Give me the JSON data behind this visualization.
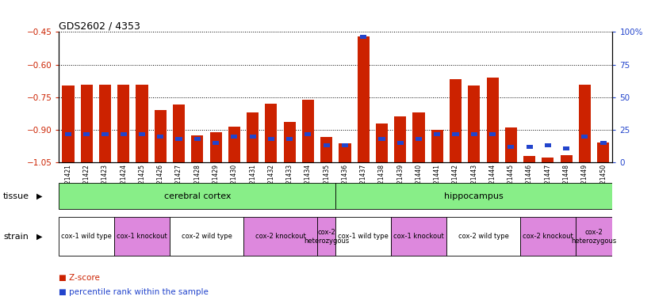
{
  "title": "GDS2602 / 4353",
  "samples": [
    "GSM121421",
    "GSM121422",
    "GSM121423",
    "GSM121424",
    "GSM121425",
    "GSM121426",
    "GSM121427",
    "GSM121428",
    "GSM121429",
    "GSM121430",
    "GSM121431",
    "GSM121432",
    "GSM121433",
    "GSM121434",
    "GSM121435",
    "GSM121436",
    "GSM121437",
    "GSM121438",
    "GSM121439",
    "GSM121440",
    "GSM121441",
    "GSM121442",
    "GSM121443",
    "GSM121444",
    "GSM121445",
    "GSM121446",
    "GSM121447",
    "GSM121448",
    "GSM121449",
    "GSM121450"
  ],
  "z_scores": [
    -0.695,
    -0.692,
    -0.694,
    -0.692,
    -0.693,
    -0.808,
    -0.782,
    -0.924,
    -0.912,
    -0.884,
    -0.82,
    -0.78,
    -0.863,
    -0.762,
    -0.932,
    -0.962,
    -0.472,
    -0.872,
    -0.838,
    -0.82,
    -0.9,
    -0.668,
    -0.696,
    -0.66,
    -0.888,
    -1.02,
    -1.025,
    -1.015,
    -0.692,
    -0.958
  ],
  "percentiles": [
    22,
    22,
    22,
    22,
    22,
    20,
    18,
    18,
    15,
    20,
    20,
    18,
    18,
    22,
    13,
    13,
    96,
    18,
    15,
    18,
    22,
    22,
    22,
    22,
    12,
    12,
    13,
    11,
    20,
    15
  ],
  "bar_color": "#cc2200",
  "blue_color": "#2244cc",
  "ylim_left": [
    -1.05,
    -0.45
  ],
  "ylim_right": [
    0,
    100
  ],
  "yticks_left": [
    -1.05,
    -0.9,
    -0.75,
    -0.6,
    -0.45
  ],
  "yticks_right": [
    0,
    25,
    50,
    75,
    100
  ],
  "bar_width": 0.65,
  "blue_bar_width": 0.35,
  "tissue_groups": [
    {
      "label": "cerebral cortex",
      "start": 0,
      "end": 15,
      "color": "#88ee88"
    },
    {
      "label": "hippocampus",
      "start": 15,
      "end": 30,
      "color": "#88ee88"
    }
  ],
  "strain_groups": [
    {
      "label": "cox-1 wild type",
      "start": 0,
      "end": 3,
      "color": "#ffffff"
    },
    {
      "label": "cox-1 knockout",
      "start": 3,
      "end": 6,
      "color": "#dd88dd"
    },
    {
      "label": "cox-2 wild type",
      "start": 6,
      "end": 10,
      "color": "#ffffff"
    },
    {
      "label": "cox-2 knockout",
      "start": 10,
      "end": 14,
      "color": "#dd88dd"
    },
    {
      "label": "cox-2\nheterozygous",
      "start": 14,
      "end": 15,
      "color": "#dd88dd"
    },
    {
      "label": "cox-1 wild type",
      "start": 15,
      "end": 18,
      "color": "#ffffff"
    },
    {
      "label": "cox-1 knockout",
      "start": 18,
      "end": 21,
      "color": "#dd88dd"
    },
    {
      "label": "cox-2 wild type",
      "start": 21,
      "end": 25,
      "color": "#ffffff"
    },
    {
      "label": "cox-2 knockout",
      "start": 25,
      "end": 28,
      "color": "#dd88dd"
    },
    {
      "label": "cox-2\nheterozygous",
      "start": 28,
      "end": 30,
      "color": "#dd88dd"
    }
  ],
  "legend_zscore_label": "Z-score",
  "legend_percentile_label": "percentile rank within the sample",
  "tissue_label": "tissue",
  "strain_label": "strain",
  "fig_bg": "#ffffff",
  "plot_bg": "#ffffff"
}
